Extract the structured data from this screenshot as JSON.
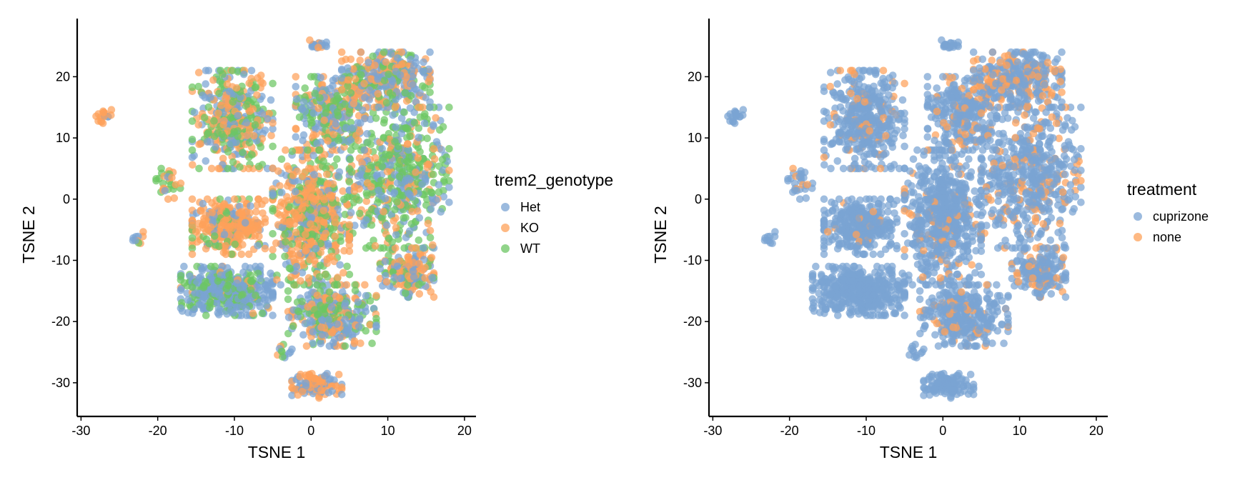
{
  "colors": {
    "Het": "#7aa3d3",
    "KO": "#fda15a",
    "WT": "#6cc663",
    "cuprizone": "#7aa3d3",
    "none": "#fda15a"
  },
  "chart_data": [
    {
      "type": "scatter",
      "xlabel": "TSNE 1",
      "ylabel": "TSNE 2",
      "xlim": [
        -30.5,
        21.5
      ],
      "ylim": [
        -35.5,
        29.5
      ],
      "xticks": [
        -30,
        -20,
        -10,
        0,
        10,
        20
      ],
      "yticks": [
        20,
        10,
        0,
        -10,
        -20,
        -30
      ],
      "xtick_labels": [
        "-30",
        "-20",
        "-10",
        "0",
        "10",
        "20"
      ],
      "ytick_labels": [
        "20",
        "10",
        "0",
        "-10",
        "-20",
        "-30"
      ],
      "legend": {
        "title": "trem2_genotype",
        "position": "right",
        "entries": [
          "Het",
          "KO",
          "WT"
        ]
      },
      "color_by": "trem2_genotype",
      "series": [
        {
          "name": "Het",
          "color": "#7aa3d3"
        },
        {
          "name": "KO",
          "color": "#fda15a"
        },
        {
          "name": "WT",
          "color": "#6cc663"
        }
      ],
      "grid": false
    },
    {
      "type": "scatter",
      "xlabel": "TSNE 1",
      "ylabel": "TSNE 2",
      "xlim": [
        -30.5,
        21.5
      ],
      "ylim": [
        -35.5,
        29.5
      ],
      "xticks": [
        -30,
        -20,
        -10,
        0,
        10,
        20
      ],
      "yticks": [
        20,
        10,
        0,
        -10,
        -20,
        -30
      ],
      "xtick_labels": [
        "-30",
        "-20",
        "-10",
        "0",
        "10",
        "20"
      ],
      "ytick_labels": [
        "20",
        "10",
        "0",
        "-10",
        "-20",
        "-30"
      ],
      "legend": {
        "title": "treatment",
        "position": "right",
        "entries": [
          "cuprizone",
          "none"
        ]
      },
      "color_by": "treatment",
      "series": [
        {
          "name": "cuprizone",
          "color": "#7aa3d3"
        },
        {
          "name": "none",
          "color": "#fda15a"
        }
      ],
      "grid": false
    }
  ],
  "clusters": [
    {
      "x": [
        -28.3,
        -25.5
      ],
      "y": [
        12.3,
        15.1
      ],
      "n": 18,
      "genotype": {
        "Het": 0.1,
        "KO": 0.9,
        "WT": 0.0
      },
      "treatment": {
        "none": 0.0
      }
    },
    {
      "x": [
        -23.3,
        -21.7
      ],
      "y": [
        -7.5,
        -5.0
      ],
      "n": 10,
      "genotype": {
        "Het": 0.5,
        "KO": 0.4,
        "WT": 0.1
      },
      "treatment": {
        "none": 0.0
      }
    },
    {
      "x": [
        -20.2,
        -17.0
      ],
      "y": [
        0.0,
        5.0
      ],
      "n": 30,
      "genotype": {
        "Het": 0.2,
        "KO": 0.4,
        "WT": 0.4
      },
      "treatment": {
        "none": 0.15
      }
    },
    {
      "x": [
        -15.5,
        -5.0
      ],
      "y": [
        5.0,
        21.0
      ],
      "n": 420,
      "genotype": {
        "Het": 0.3,
        "KO": 0.35,
        "WT": 0.35
      },
      "treatment": {
        "none": 0.15
      }
    },
    {
      "x": [
        -15.5,
        -6.0
      ],
      "y": [
        -9.0,
        0.0
      ],
      "n": 330,
      "genotype": {
        "Het": 0.15,
        "KO": 0.75,
        "WT": 0.1
      },
      "treatment": {
        "none": 0.03
      }
    },
    {
      "x": [
        -5.0,
        5.0
      ],
      "y": [
        -14.0,
        8.0
      ],
      "n": 620,
      "genotype": {
        "Het": 0.2,
        "KO": 0.55,
        "WT": 0.25
      },
      "treatment": {
        "none": 0.08
      }
    },
    {
      "x": [
        -2.0,
        7.0
      ],
      "y": [
        8.0,
        20.0
      ],
      "n": 280,
      "genotype": {
        "Het": 0.35,
        "KO": 0.25,
        "WT": 0.4
      },
      "treatment": {
        "none": 0.15
      }
    },
    {
      "x": [
        4.0,
        15.5
      ],
      "y": [
        15.0,
        24.0
      ],
      "n": 380,
      "genotype": {
        "Het": 0.35,
        "KO": 0.4,
        "WT": 0.25
      },
      "treatment": {
        "none": 0.3
      }
    },
    {
      "x": [
        5.0,
        18.0
      ],
      "y": [
        -8.0,
        15.0
      ],
      "n": 560,
      "genotype": {
        "Het": 0.3,
        "KO": 0.2,
        "WT": 0.5
      },
      "treatment": {
        "none": 0.2
      }
    },
    {
      "x": [
        9.0,
        16.0
      ],
      "y": [
        -16.0,
        -8.0
      ],
      "n": 180,
      "genotype": {
        "Het": 0.35,
        "KO": 0.45,
        "WT": 0.2
      },
      "treatment": {
        "none": 0.2
      }
    },
    {
      "x": [
        -17.0,
        -5.0
      ],
      "y": [
        -19.0,
        -11.0
      ],
      "n": 420,
      "genotype": {
        "Het": 0.65,
        "KO": 0.05,
        "WT": 0.3
      },
      "treatment": {
        "none": 0.0
      }
    },
    {
      "x": [
        -3.0,
        8.5
      ],
      "y": [
        -24.0,
        -14.0
      ],
      "n": 330,
      "genotype": {
        "Het": 0.4,
        "KO": 0.3,
        "WT": 0.3
      },
      "treatment": {
        "none": 0.08
      }
    },
    {
      "x": [
        -2.5,
        4.0
      ],
      "y": [
        -32.5,
        -28.5
      ],
      "n": 110,
      "genotype": {
        "Het": 0.4,
        "KO": 0.6,
        "WT": 0.0
      },
      "treatment": {
        "none": 0.0
      }
    },
    {
      "x": [
        -4.5,
        -2.5
      ],
      "y": [
        -26.0,
        -23.5
      ],
      "n": 12,
      "genotype": {
        "Het": 0.4,
        "KO": 0.4,
        "WT": 0.2
      },
      "treatment": {
        "none": 0.0
      }
    },
    {
      "x": [
        -0.5,
        2.0
      ],
      "y": [
        24.5,
        26.0
      ],
      "n": 18,
      "genotype": {
        "Het": 0.6,
        "KO": 0.4,
        "WT": 0.0
      },
      "treatment": {
        "none": 0.0
      }
    }
  ]
}
